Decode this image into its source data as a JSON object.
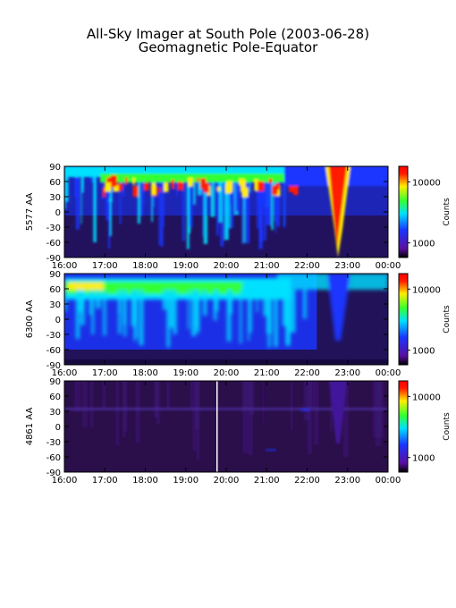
{
  "title": "All-Sky Imager at South Pole (2003-06-28)",
  "subtitle": "Geomagnetic Pole-Equator",
  "x_ticks": [
    "16:00",
    "17:00",
    "18:00",
    "19:00",
    "20:00",
    "21:00",
    "22:00",
    "23:00",
    "00:00"
  ],
  "y_ticks": [
    "90",
    "60",
    "30",
    "0",
    "-30",
    "-60",
    "-90"
  ],
  "colorbar_label": "Counts",
  "colors": {
    "dark_bg": "#2a0f4a",
    "violet": "#5a0fa0",
    "blue": "#1a35ff",
    "cyan": "#00e0ff",
    "green": "#33ff33",
    "yellow": "#ffee00",
    "red": "#ff1a00"
  },
  "chart_data": [
    {
      "type": "heatmap",
      "panel_label": "5577 AA",
      "x": [
        "16:00",
        "17:00",
        "18:00",
        "19:00",
        "20:00",
        "21:00",
        "22:00",
        "23:00",
        "00:00"
      ],
      "y": [
        90,
        60,
        30,
        0,
        -30,
        -60,
        -90
      ],
      "ylim": [
        -90,
        90
      ],
      "colorbar_ticks": [
        "10000",
        "1000"
      ],
      "colorscale": "log"
    },
    {
      "type": "heatmap",
      "panel_label": "6300 AA",
      "x": [
        "16:00",
        "17:00",
        "18:00",
        "19:00",
        "20:00",
        "21:00",
        "22:00",
        "23:00",
        "00:00"
      ],
      "y": [
        90,
        60,
        30,
        0,
        -30,
        -60,
        -90
      ],
      "ylim": [
        -90,
        90
      ],
      "colorbar_ticks": [
        "10000",
        "1000"
      ],
      "colorscale": "log"
    },
    {
      "type": "heatmap",
      "panel_label": "4861 AA",
      "x": [
        "16:00",
        "17:00",
        "18:00",
        "19:00",
        "20:00",
        "21:00",
        "22:00",
        "23:00",
        "00:00"
      ],
      "y": [
        90,
        60,
        30,
        0,
        -30,
        -60,
        -90
      ],
      "ylim": [
        -90,
        90
      ],
      "colorbar_ticks": [
        "10000",
        "1000"
      ],
      "colorscale": "log"
    }
  ]
}
